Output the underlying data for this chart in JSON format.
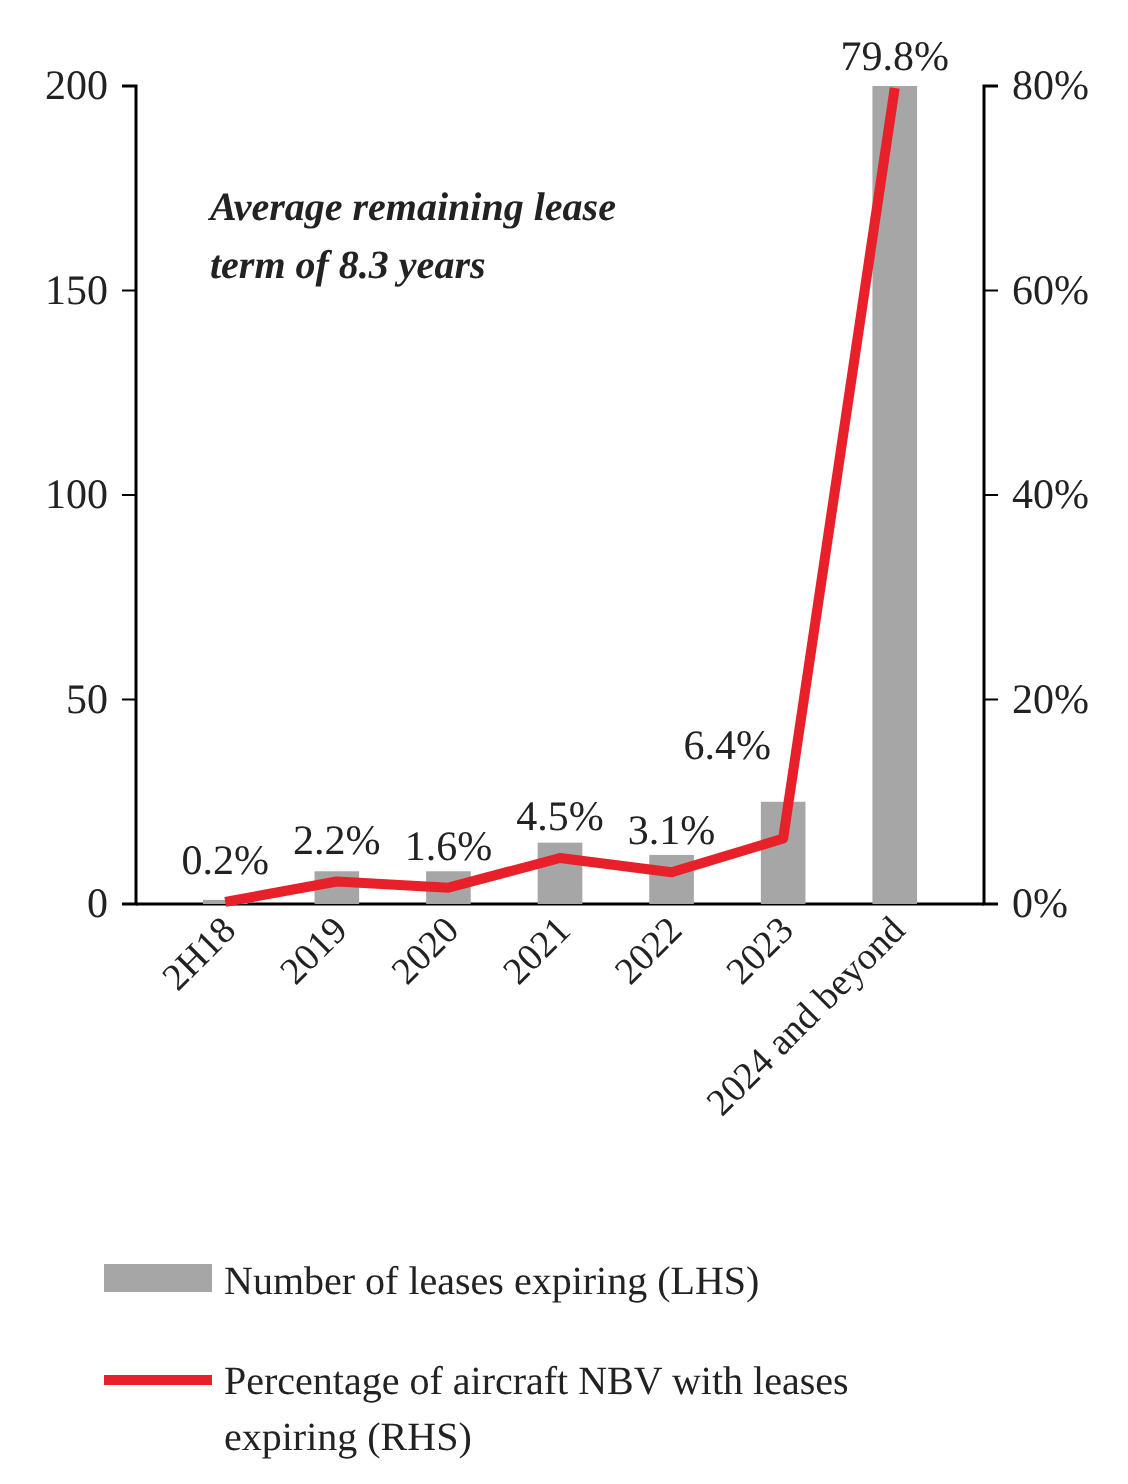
{
  "chart_data": {
    "type": "bar",
    "categories": [
      "2H18",
      "2019",
      "2020",
      "2021",
      "2022",
      "2023",
      "2024 and beyond"
    ],
    "series": [
      {
        "name": "Number of leases expiring (LHS)",
        "color": "#a6a6a6",
        "values": [
          1,
          8,
          8,
          15,
          12,
          25,
          200
        ]
      },
      {
        "name": "Percentage of aircraft NBV with leases expiring (RHS)",
        "type": "line",
        "axis": "y2",
        "color": "#e8202a",
        "values": [
          0.2,
          2.2,
          1.6,
          4.5,
          3.1,
          6.4,
          79.8
        ],
        "value_labels": [
          "0.2%",
          "2.2%",
          "1.6%",
          "4.5%",
          "3.1%",
          "6.4%",
          "79.8%"
        ]
      }
    ],
    "ylim": [
      0,
      200
    ],
    "yticks": [
      0,
      50,
      100,
      150,
      200
    ],
    "y2lim": [
      0,
      80
    ],
    "y2ticks": [
      {
        "value": 0,
        "label": "0%"
      },
      {
        "value": 20,
        "label": "20%"
      },
      {
        "value": 40,
        "label": "40%"
      },
      {
        "value": 60,
        "label": "60%"
      },
      {
        "value": 80,
        "label": "80%"
      }
    ],
    "annotations": [
      "Average remaining lease term of 8.3 years"
    ],
    "legend": "bottom",
    "grid": false,
    "marker": "none",
    "line_style": "solid"
  }
}
